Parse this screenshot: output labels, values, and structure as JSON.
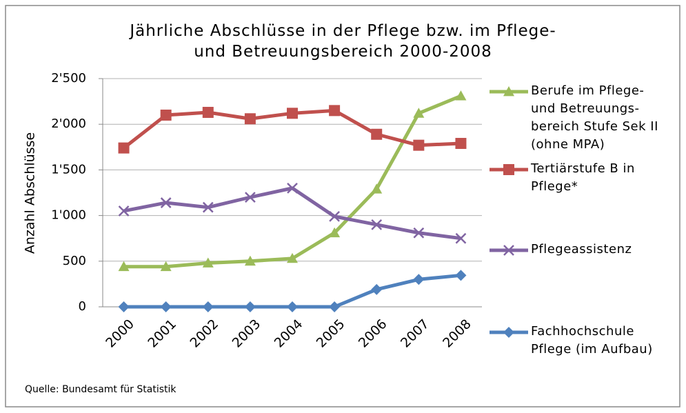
{
  "chart_data": {
    "type": "line",
    "title": "Jährliche Abschlüsse in der Pflege bzw. im Pflege-\nund Betreuungsbereich 2000-2008",
    "ylabel": "Anzahl Abschlüsse",
    "source": "Quelle: Bundesamt  für Statistik",
    "categories": [
      "2000",
      "2001",
      "2002",
      "2003",
      "2004",
      "2005",
      "2006",
      "2007",
      "2008"
    ],
    "series": [
      {
        "name": "Berufe im Pflege-\nund Betreuungs-\nbereich Stufe Sek II\n(ohne MPA)",
        "color": "#9bbb59",
        "marker": "triangle",
        "values": [
          440,
          440,
          480,
          500,
          530,
          810,
          1290,
          2120,
          2310
        ]
      },
      {
        "name": "Tertiärstufe B in\nPflege*",
        "color": "#c0504d",
        "marker": "square",
        "values": [
          1740,
          2100,
          2130,
          2060,
          2120,
          2150,
          1890,
          1770,
          1790
        ]
      },
      {
        "name": "Pflegeassistenz",
        "color": "#8064a2",
        "marker": "x",
        "values": [
          1050,
          1140,
          1090,
          1200,
          1300,
          990,
          900,
          810,
          750
        ]
      },
      {
        "name": "Fachhochschule\nPflege (im Aufbau)",
        "color": "#4f81bd",
        "marker": "diamond",
        "values": [
          0,
          0,
          0,
          0,
          0,
          0,
          190,
          300,
          345
        ]
      }
    ],
    "ylim": [
      0,
      2500
    ],
    "yticks": [
      0,
      500,
      {
        "value": 1000,
        "label": "1'000"
      },
      {
        "value": 1500,
        "label": "1'500"
      },
      {
        "value": 2000,
        "label": "2'000"
      },
      {
        "value": 2500,
        "label": "2'500"
      }
    ],
    "grid": true,
    "legend": "right"
  }
}
